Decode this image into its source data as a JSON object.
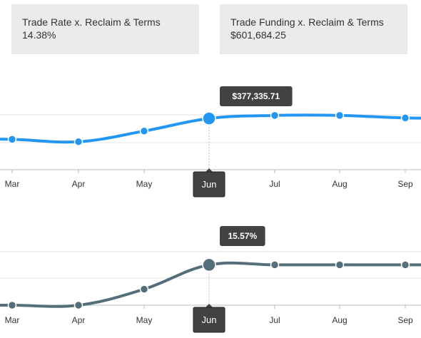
{
  "kpis": [
    {
      "label": "Trade Rate x. Reclaim & Terms",
      "value": "14.38%"
    },
    {
      "label": "Trade Funding x. Reclaim & Terms",
      "value": "$601,684.25"
    }
  ],
  "charts": [
    {
      "id": "chart-top",
      "series_name": "Trade Funding x. Reclaim & Terms",
      "color": "#2196f3",
      "months": [
        "Mar",
        "Apr",
        "May",
        "Jun",
        "Jul",
        "Aug",
        "Sep"
      ],
      "values": [
        352000,
        349000,
        362000,
        377335.71,
        381000,
        381000,
        378000
      ],
      "ylim": [
        315000,
        400000
      ],
      "selected_index": 3,
      "selected_label": "Jun",
      "tooltip": "$377,335.71"
    },
    {
      "id": "chart-bottom",
      "series_name": "Trade Rate x. Reclaim & Terms",
      "color": "#546e7a",
      "months": [
        "Mar",
        "Apr",
        "May",
        "Jun",
        "Jul",
        "Aug",
        "Sep"
      ],
      "values": [
        12.8,
        12.8,
        13.9,
        15.57,
        15.57,
        15.57,
        15.57
      ],
      "ylim": [
        12.8,
        17.5
      ],
      "selected_index": 3,
      "selected_label": "Jun",
      "tooltip": "15.57%"
    }
  ],
  "chart_data": [
    {
      "type": "line",
      "title": "",
      "xlabel": "",
      "ylabel": "",
      "categories": [
        "Mar",
        "Apr",
        "May",
        "Jun",
        "Jul",
        "Aug",
        "Sep"
      ],
      "series": [
        {
          "values": [
            352000,
            349000,
            362000,
            377335.71,
            381000,
            381000,
            378000
          ]
        }
      ],
      "annotations": [
        "$377,335.71"
      ],
      "grid": true
    },
    {
      "type": "line",
      "title": "",
      "xlabel": "",
      "ylabel": "",
      "categories": [
        "Mar",
        "Apr",
        "May",
        "Jun",
        "Jul",
        "Aug",
        "Sep"
      ],
      "series": [
        {
          "values": [
            12.8,
            12.8,
            13.9,
            15.57,
            15.57,
            15.57,
            15.57
          ]
        }
      ],
      "annotations": [
        "15.57%"
      ],
      "grid": true
    }
  ]
}
